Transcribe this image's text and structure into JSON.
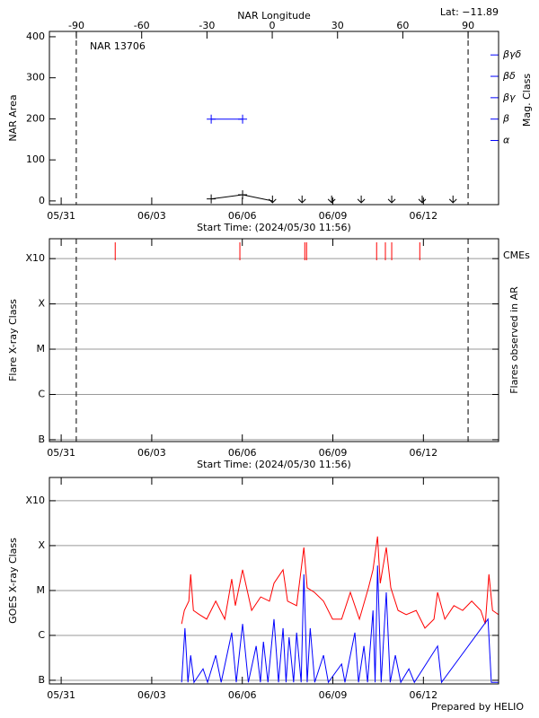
{
  "chart_data": [
    {
      "type": "line",
      "title": "NAR 13706",
      "annotation": "Lat: −11.89",
      "xlabel": "Start Time: (2024/05/30 11:56)",
      "ylabel": "NAR Area",
      "y2label": "Mag. Class",
      "x2label": "NAR Longitude",
      "xlim": [
        0.61,
        15.49
      ],
      "xticks": [
        {
          "value": 1,
          "label": "05/31"
        },
        {
          "value": 4,
          "label": "06/03"
        },
        {
          "value": 7,
          "label": "06/06"
        },
        {
          "value": 10,
          "label": "06/09"
        },
        {
          "value": 13,
          "label": "06/12"
        }
      ],
      "x2lim": [
        -102.4,
        104.0
      ],
      "x2ticks": [
        -90,
        -60,
        -30,
        0,
        30,
        60,
        90
      ],
      "ylim": [
        -9,
        413
      ],
      "yticks": [
        0,
        100,
        200,
        300,
        400
      ],
      "y2lim": [
        0,
        8.1
      ],
      "y2ticks": [
        {
          "value": 3,
          "label": "α"
        },
        {
          "value": 4,
          "label": "β"
        },
        {
          "value": 5,
          "label": "βγ"
        },
        {
          "value": 6,
          "label": "βδ"
        },
        {
          "value": 7,
          "label": "βγδ"
        }
      ],
      "y2color": "#0000ff",
      "vlines": [
        1.5,
        14.48
      ],
      "series": [
        {
          "color": "#000000",
          "x": [
            5.97,
            7.01,
            8.0
          ],
          "values": [
            5,
            15,
            0
          ],
          "markers": [
            "+",
            "+",
            "v"
          ],
          "line": true
        },
        {
          "color": "#000000",
          "x": [
            8.98,
            9.96,
            10.94,
            11.95,
            12.96,
            13.98
          ],
          "values": [
            0,
            0,
            0,
            0,
            0,
            0
          ],
          "markers": [
            "v",
            "v",
            "v",
            "v",
            "v",
            "v"
          ],
          "line": false
        },
        {
          "color": "#0000ff",
          "axis": "y2",
          "x": [
            5.97,
            7.01
          ],
          "values": [
            4,
            4
          ],
          "markers": [
            "+",
            "+"
          ],
          "line": true
        }
      ]
    },
    {
      "type": "timeline",
      "xlabel": "Start Time: (2024/05/30 11:56)",
      "ylabel": "Flare X-ray Class",
      "y2label": "Flares observed in AR",
      "xlim": [
        0.61,
        15.49
      ],
      "xticks": [
        {
          "value": 1,
          "label": "05/31"
        },
        {
          "value": 4,
          "label": "06/03"
        },
        {
          "value": 7,
          "label": "06/06"
        },
        {
          "value": 10,
          "label": "06/09"
        },
        {
          "value": 13,
          "label": "06/12"
        }
      ],
      "log": true,
      "ylim": [
        9.1e-08,
        0.00275
      ],
      "yticks": [
        {
          "value": 1e-07,
          "label": "B"
        },
        {
          "value": 1e-06,
          "label": "C"
        },
        {
          "value": 1e-05,
          "label": "M"
        },
        {
          "value": 0.0001,
          "label": "X"
        },
        {
          "value": 0.001,
          "label": "X10"
        }
      ],
      "grid": true,
      "vlines": [
        1.5,
        14.48
      ],
      "events": {
        "name": "CMEs",
        "color": "#ff0000",
        "x": [
          2.79,
          6.92,
          9.07,
          9.13,
          11.45,
          11.74,
          11.95,
          12.88
        ]
      }
    },
    {
      "type": "line",
      "ylabel": "GOES X-ray Class",
      "xlim": [
        0.61,
        15.49
      ],
      "xticks": [
        {
          "value": 1,
          "label": "05/31"
        },
        {
          "value": 4,
          "label": "06/03"
        },
        {
          "value": 7,
          "label": "06/06"
        },
        {
          "value": 10,
          "label": "06/09"
        },
        {
          "value": 13,
          "label": "06/12"
        }
      ],
      "log": true,
      "ylim": [
        8.3e-08,
        0.0033
      ],
      "yticks": [
        {
          "value": 1e-07,
          "label": "B"
        },
        {
          "value": 1e-06,
          "label": "C"
        },
        {
          "value": 1e-05,
          "label": "M"
        },
        {
          "value": 0.0001,
          "label": "X"
        },
        {
          "value": 0.001,
          "label": "X10"
        }
      ],
      "grid": true,
      "series": [
        {
          "color": "#ff0000",
          "line": true,
          "x": [
            4.99,
            5.08,
            5.23,
            5.29,
            5.38,
            5.58,
            5.82,
            6.12,
            6.42,
            6.65,
            6.77,
            7.01,
            7.31,
            7.61,
            7.9,
            8.05,
            8.35,
            8.5,
            8.8,
            9.04,
            9.15,
            9.39,
            9.69,
            9.99,
            10.29,
            10.58,
            10.88,
            11.18,
            11.33,
            11.48,
            11.57,
            11.77,
            11.92,
            12.16,
            12.43,
            12.76,
            13.05,
            13.35,
            13.47,
            13.71,
            14.01,
            14.3,
            14.6,
            14.9,
            15.05,
            15.17,
            15.29,
            15.49
          ],
          "values": [
            1.8e-06,
            3.6e-06,
            5.8e-06,
            2.3e-05,
            3.6e-06,
            2.9e-06,
            2.3e-06,
            5.8e-06,
            2.3e-06,
            1.8e-05,
            4.6e-06,
            2.9e-05,
            3.6e-06,
            7.2e-06,
            5.8e-06,
            1.45e-05,
            2.9e-05,
            5.8e-06,
            4.6e-06,
            9.1e-05,
            1.15e-05,
            9.1e-06,
            5.8e-06,
            2.3e-06,
            2.3e-06,
            9.1e-06,
            2.3e-06,
            1.15e-05,
            2.9e-05,
            0.00016,
            1.45e-05,
            9.1e-05,
            1.15e-05,
            3.6e-06,
            2.9e-06,
            3.6e-06,
            1.45e-06,
            2.3e-06,
            9.1e-06,
            2.3e-06,
            4.6e-06,
            3.6e-06,
            5.8e-06,
            3.6e-06,
            1.8e-06,
            2.3e-05,
            3.6e-06,
            2.9e-06
          ]
        },
        {
          "color": "#0000ff",
          "line": true,
          "x": [
            4.99,
            5.1,
            5.2,
            5.29,
            5.4,
            5.7,
            5.85,
            6.12,
            6.3,
            6.65,
            6.8,
            7.01,
            7.2,
            7.46,
            7.6,
            7.7,
            7.85,
            8.05,
            8.2,
            8.35,
            8.45,
            8.55,
            8.7,
            8.8,
            8.95,
            9.04,
            9.15,
            9.25,
            9.4,
            9.69,
            9.85,
            10.29,
            10.4,
            10.73,
            10.85,
            11.03,
            11.15,
            11.33,
            11.4,
            11.48,
            11.6,
            11.77,
            11.9,
            12.07,
            12.25,
            12.52,
            12.7,
            13.47,
            13.6,
            15.14,
            15.25,
            15.49
          ],
          "values": [
            9e-08,
            1.45e-06,
            9e-08,
            3.6e-07,
            9e-08,
            1.8e-07,
            9e-08,
            3.6e-07,
            9e-08,
            1.15e-06,
            9e-08,
            1.8e-06,
            9e-08,
            5.8e-07,
            9e-08,
            7.2e-07,
            9e-08,
            2.3e-06,
            9e-08,
            1.45e-06,
            9e-08,
            9.1e-07,
            9e-08,
            1.15e-06,
            9e-08,
            2.3e-05,
            9e-08,
            1.45e-06,
            9e-08,
            3.6e-07,
            9e-08,
            2.3e-07,
            9e-08,
            1.15e-06,
            9e-08,
            5.8e-07,
            9e-08,
            3.6e-06,
            9e-08,
            3.6e-05,
            9e-08,
            9.1e-06,
            9e-08,
            3.6e-07,
            9e-08,
            1.8e-07,
            9e-08,
            5.8e-07,
            9e-08,
            2.3e-06,
            9e-08,
            9e-08
          ]
        }
      ]
    }
  ],
  "footer": "Prepared by HELIO"
}
